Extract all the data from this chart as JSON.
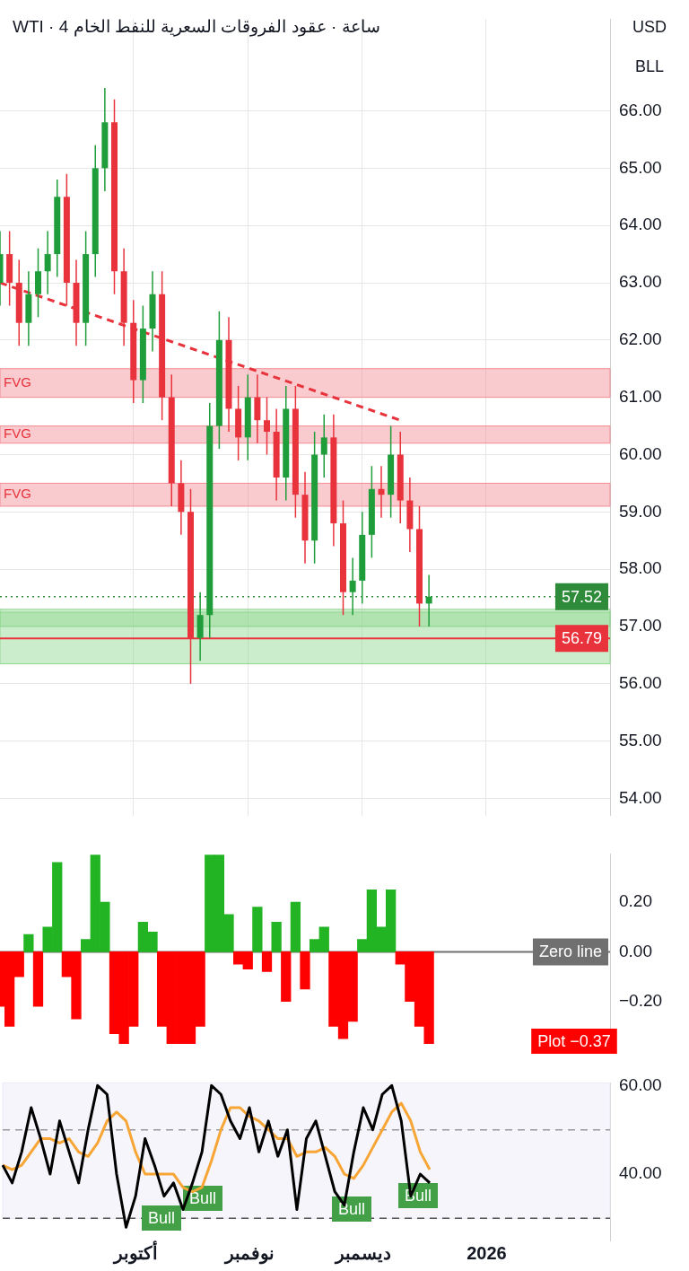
{
  "chart_data": [
    {
      "type": "candlestick",
      "title": "WTI · 4 ساعة · عقود الفروقات السعرية للنفط الخام",
      "ohlc": [
        [
          63.0,
          63.9,
          62.6,
          63.5
        ],
        [
          63.5,
          63.9,
          62.6,
          63.0
        ],
        [
          63.0,
          63.4,
          61.9,
          62.3
        ],
        [
          62.3,
          63.2,
          61.9,
          62.8
        ],
        [
          62.8,
          63.6,
          62.4,
          63.2
        ],
        [
          63.2,
          63.9,
          62.8,
          63.5
        ],
        [
          63.5,
          64.8,
          63.1,
          64.5
        ],
        [
          64.5,
          64.9,
          62.6,
          63.0
        ],
        [
          63.0,
          63.4,
          61.9,
          62.3
        ],
        [
          62.3,
          63.9,
          61.9,
          63.5
        ],
        [
          63.5,
          65.4,
          63.1,
          65.0
        ],
        [
          65.0,
          66.4,
          64.6,
          65.8
        ],
        [
          65.8,
          66.2,
          62.8,
          63.2
        ],
        [
          63.2,
          63.6,
          61.9,
          62.3
        ],
        [
          62.3,
          62.7,
          60.9,
          61.3
        ],
        [
          61.3,
          62.6,
          60.9,
          62.2
        ],
        [
          62.2,
          63.2,
          61.8,
          62.8
        ],
        [
          62.8,
          63.2,
          60.6,
          61.0
        ],
        [
          61.0,
          61.4,
          59.1,
          59.5
        ],
        [
          59.5,
          59.9,
          58.6,
          59.0
        ],
        [
          59.0,
          59.4,
          56.0,
          56.8
        ],
        [
          56.8,
          57.6,
          56.4,
          57.2
        ],
        [
          57.2,
          60.9,
          56.8,
          60.5
        ],
        [
          60.5,
          62.5,
          60.1,
          62.0
        ],
        [
          62.0,
          62.4,
          60.4,
          60.8
        ],
        [
          60.8,
          61.2,
          59.9,
          60.3
        ],
        [
          60.3,
          61.4,
          59.9,
          61.0
        ],
        [
          61.0,
          61.4,
          60.2,
          60.6
        ],
        [
          60.6,
          61.0,
          60.0,
          60.4
        ],
        [
          60.4,
          60.8,
          59.2,
          59.6
        ],
        [
          59.6,
          61.2,
          59.2,
          60.8
        ],
        [
          60.8,
          61.2,
          58.9,
          59.3
        ],
        [
          59.3,
          59.7,
          58.1,
          58.5
        ],
        [
          58.5,
          60.4,
          58.1,
          60.0
        ],
        [
          60.0,
          60.7,
          59.6,
          60.3
        ],
        [
          60.3,
          60.7,
          58.4,
          58.8
        ],
        [
          58.8,
          59.2,
          57.2,
          57.6
        ],
        [
          57.6,
          58.2,
          57.2,
          57.8
        ],
        [
          57.8,
          59.0,
          57.4,
          58.6
        ],
        [
          58.6,
          59.8,
          58.2,
          59.4
        ],
        [
          59.4,
          59.8,
          58.9,
          59.3
        ],
        [
          59.3,
          60.5,
          58.9,
          60.0
        ],
        [
          60.0,
          60.4,
          58.8,
          59.2
        ],
        [
          59.2,
          59.6,
          58.3,
          58.7
        ],
        [
          58.7,
          59.1,
          57.0,
          57.4
        ],
        [
          57.4,
          57.9,
          57.0,
          57.52
        ],
        null,
        null,
        null,
        null,
        null,
        null,
        null,
        null,
        null,
        null,
        null,
        null,
        null,
        null,
        null,
        null,
        null,
        null,
        null
      ],
      "series": [
        {
          "type": "line",
          "values": [
            63.0,
            null,
            null,
            null,
            null,
            null,
            null,
            null,
            null,
            null,
            null,
            null,
            null,
            null,
            null,
            null,
            null,
            null,
            null,
            null,
            null,
            null,
            null,
            null,
            null,
            null,
            null,
            null,
            null,
            null,
            null,
            null,
            null,
            null,
            null,
            null,
            null,
            null,
            null,
            null,
            null,
            null,
            60.6,
            null,
            null,
            null,
            null,
            null,
            null,
            null,
            null,
            null,
            null,
            null,
            null,
            null,
            null,
            null,
            null,
            null,
            null,
            null,
            null,
            null,
            null
          ],
          "color": "#e8323c",
          "line_style": "dashed"
        }
      ],
      "ylim": [
        53.7,
        67.6
      ],
      "yticks": [
        {
          "value": 54,
          "label": "54.00"
        },
        {
          "value": 55,
          "label": "55.00"
        },
        {
          "value": 56,
          "label": "56.00"
        },
        {
          "value": 57,
          "label": "57.00"
        },
        {
          "value": 58,
          "label": "58.00"
        },
        {
          "value": 59,
          "label": "59.00"
        },
        {
          "value": 60,
          "label": "60.00"
        },
        {
          "value": 61,
          "label": "61.00"
        },
        {
          "value": 62,
          "label": "62.00"
        },
        {
          "value": 63,
          "label": "63.00"
        },
        {
          "value": 64,
          "label": "64.00"
        },
        {
          "value": 65,
          "label": "65.00"
        },
        {
          "value": 66,
          "label": "66.00"
        }
      ],
      "bands": [
        {
          "axis": "y",
          "from": 61.0,
          "to": 61.5,
          "label": "FVG",
          "color": "#f28b93"
        },
        {
          "axis": "y",
          "from": 60.2,
          "to": 60.5,
          "label": "FVG",
          "color": "#f28b93"
        },
        {
          "axis": "y",
          "from": 59.1,
          "to": 59.5,
          "label": "FVG",
          "color": "#f28b93"
        },
        {
          "axis": "y",
          "from": 56.35,
          "to": 57.25,
          "color": "#8fd68f"
        },
        {
          "axis": "y",
          "from": 57.0,
          "to": 57.3,
          "color": "#8fd68f"
        }
      ],
      "ref_lines": [
        {
          "axis": "y",
          "value": 57.52,
          "label": "57.52",
          "color": "#2e8b3a",
          "line_style": "dotted"
        },
        {
          "axis": "y",
          "value": 56.79,
          "label": "56.79",
          "color": "#e8323c",
          "line_style": "solid"
        }
      ],
      "annotations": [
        "USD",
        "BLL"
      ],
      "grid": true,
      "tick_labels": "y"
    },
    {
      "type": "bar",
      "values": [
        -0.22,
        -0.3,
        -0.1,
        0.07,
        -0.22,
        0.1,
        0.36,
        -0.1,
        -0.27,
        0.05,
        0.39,
        0.2,
        -0.33,
        -0.37,
        -0.3,
        0.12,
        0.08,
        -0.3,
        -0.37,
        -0.37,
        -0.37,
        -0.3,
        0.39,
        0.39,
        0.15,
        -0.05,
        -0.07,
        0.18,
        -0.08,
        0.12,
        -0.2,
        0.2,
        -0.15,
        0.05,
        0.1,
        -0.3,
        -0.35,
        -0.28,
        0.05,
        0.25,
        0.1,
        0.25,
        -0.05,
        -0.2,
        -0.3,
        -0.37,
        null,
        null,
        null,
        null,
        null,
        null,
        null,
        null,
        null,
        null,
        null,
        null,
        null,
        null,
        null,
        null,
        null,
        null,
        null
      ],
      "colors": [
        "#ff0000",
        "#ff0000",
        "#ff0000",
        "#22b422",
        "#ff0000",
        "#22b422",
        "#22b422",
        "#ff0000",
        "#ff0000",
        "#22b422",
        "#22b422",
        "#22b422",
        "#ff0000",
        "#ff0000",
        "#ff0000",
        "#22b422",
        "#22b422",
        "#ff0000",
        "#ff0000",
        "#ff0000",
        "#ff0000",
        "#ff0000",
        "#22b422",
        "#22b422",
        "#22b422",
        "#ff0000",
        "#ff0000",
        "#22b422",
        "#ff0000",
        "#22b422",
        "#ff0000",
        "#22b422",
        "#ff0000",
        "#22b422",
        "#22b422",
        "#ff0000",
        "#ff0000",
        "#ff0000",
        "#22b422",
        "#22b422",
        "#22b422",
        "#22b422",
        "#ff0000",
        "#ff0000",
        "#ff0000",
        "#ff0000",
        null,
        null,
        null,
        null,
        null,
        null,
        null,
        null,
        null,
        null,
        null,
        null,
        null,
        null,
        null,
        null,
        null,
        null,
        null
      ],
      "ylim": [
        -0.373,
        0.394
      ],
      "yticks": [
        {
          "value": -0.2,
          "label": "−0.20"
        },
        {
          "value": 0,
          "label": "0.00"
        },
        {
          "value": 0.2,
          "label": "0.20"
        }
      ],
      "ref_lines": [
        {
          "axis": "y",
          "value": 0,
          "label": "Zero line",
          "color": "#707070",
          "line_style": "solid"
        }
      ],
      "annotations": [
        "Plot −0.37"
      ],
      "tick_labels": "y"
    },
    {
      "type": "line",
      "categories": [
        null,
        null,
        null,
        null,
        null,
        null,
        null,
        null,
        null,
        null,
        null,
        null,
        null,
        null,
        "أكتوبر",
        null,
        null,
        null,
        null,
        null,
        null,
        null,
        null,
        null,
        null,
        null,
        "نوفمبر",
        null,
        null,
        null,
        null,
        null,
        null,
        null,
        null,
        null,
        null,
        null,
        "ديسمبر",
        null,
        null,
        null,
        null,
        null,
        null,
        null,
        null,
        null,
        null,
        null,
        null,
        "2026",
        null,
        null,
        null,
        null,
        null,
        null,
        null,
        null,
        null,
        null,
        null,
        null,
        null
      ],
      "series": [
        {
          "color": "#000000",
          "values": [
            42,
            38,
            45,
            55,
            48,
            40,
            52,
            45,
            38,
            50,
            60,
            58,
            40,
            28,
            35,
            48,
            42,
            35,
            38,
            32,
            38,
            45,
            60,
            58,
            52,
            48,
            55,
            45,
            52,
            44,
            50,
            32,
            48,
            52,
            44,
            36,
            33,
            45,
            55,
            50,
            58,
            60,
            52,
            35,
            40,
            38,
            null,
            null,
            null,
            null,
            null,
            null,
            null,
            null,
            null,
            null,
            null,
            null,
            null,
            null,
            null,
            null,
            null,
            null,
            null
          ]
        },
        {
          "color": "#f7a535",
          "values": [
            42,
            41,
            42,
            45,
            48,
            48,
            47,
            48,
            45,
            44,
            47,
            52,
            54,
            52,
            45,
            40,
            40,
            40,
            40,
            37,
            36,
            37,
            43,
            50,
            55,
            55,
            53,
            52,
            50,
            48,
            48,
            44,
            45,
            45,
            46,
            44,
            40,
            39,
            42,
            46,
            50,
            54,
            56,
            52,
            45,
            41,
            null,
            null,
            null,
            null,
            null,
            null,
            null,
            null,
            null,
            null,
            null,
            null,
            null,
            null,
            null,
            null,
            null,
            null,
            null
          ]
        }
      ],
      "ylim": [
        25,
        60.6
      ],
      "yticks": [
        {
          "value": 40,
          "label": "40.00"
        },
        {
          "value": 60,
          "label": "60.00"
        }
      ],
      "bands": [
        {
          "axis": "y",
          "from": 30,
          "to": 60.6,
          "color": "#ece8f6"
        }
      ],
      "ref_lines": [
        {
          "axis": "y",
          "value": 50,
          "color": "#9a9a9a",
          "line_style": "dashed"
        },
        {
          "axis": "y",
          "value": 30,
          "color": "#555555",
          "line_style": "dashed"
        }
      ],
      "annotations": [
        "Bull",
        "Bull",
        "Bull",
        "Bull"
      ],
      "marker": "none",
      "line_style": "solid"
    }
  ]
}
